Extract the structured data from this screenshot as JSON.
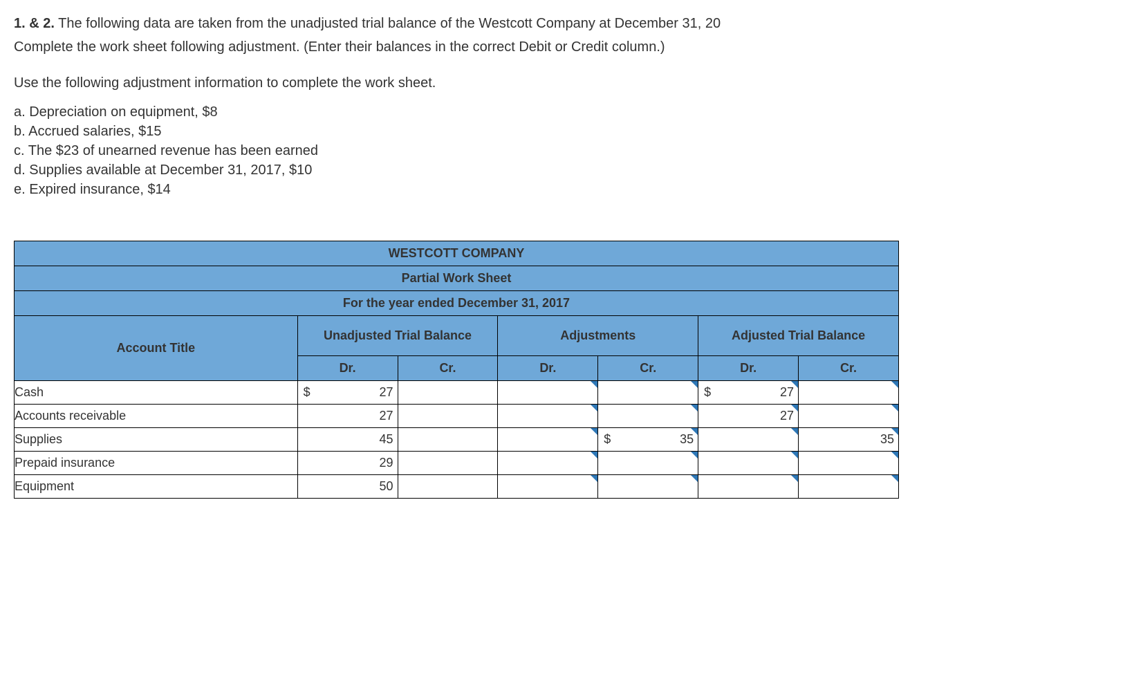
{
  "intro": {
    "line1_prefix": "1. & 2.",
    "line1_rest": " The following data are taken from the unadjusted trial balance of the Westcott Company at December 31, 20",
    "line2": "Complete the work sheet following adjustment. (Enter their balances in the correct Debit or Credit column.)",
    "line3": "Use the following adjustment information to complete the work sheet."
  },
  "adjustments_list": {
    "a": "a. Depreciation on equipment, $8",
    "b": "b. Accrued salaries, $15",
    "c": "c. The $23 of unearned revenue has been earned",
    "d": "d. Supplies available at December 31, 2017, $10",
    "e": "e. Expired insurance, $14"
  },
  "table": {
    "title1": "WESTCOTT COMPANY",
    "title2": "Partial Work Sheet",
    "title3": "For the year ended December 31, 2017",
    "group_headers": {
      "unadj": "Unadjusted Trial Balance",
      "adj": "Adjustments",
      "adjtb": "Adjusted Trial Balance"
    },
    "col_headers": {
      "acct": "Account Title",
      "dr": "Dr.",
      "cr": "Cr."
    },
    "header_bg": "#6fa8d8",
    "marker_color": "#2f78b7",
    "rows": [
      {
        "label": "Cash",
        "unadj_dr": {
          "sym": "$",
          "val": "27"
        },
        "unadj_cr": {
          "sym": "",
          "val": ""
        },
        "adj_dr": {
          "editable": true,
          "sym": "",
          "val": ""
        },
        "adj_cr": {
          "editable": true,
          "sym": "",
          "val": ""
        },
        "atb_dr": {
          "editable": true,
          "sym": "$",
          "val": "27"
        },
        "atb_cr": {
          "editable": true,
          "sym": "",
          "val": ""
        }
      },
      {
        "label": "Accounts receivable",
        "unadj_dr": {
          "sym": "",
          "val": "27"
        },
        "unadj_cr": {
          "sym": "",
          "val": ""
        },
        "adj_dr": {
          "editable": true,
          "sym": "",
          "val": ""
        },
        "adj_cr": {
          "editable": true,
          "sym": "",
          "val": ""
        },
        "atb_dr": {
          "editable": true,
          "sym": "",
          "val": "27"
        },
        "atb_cr": {
          "editable": true,
          "sym": "",
          "val": ""
        }
      },
      {
        "label": "Supplies",
        "unadj_dr": {
          "sym": "",
          "val": "45"
        },
        "unadj_cr": {
          "sym": "",
          "val": ""
        },
        "adj_dr": {
          "editable": true,
          "sym": "",
          "val": ""
        },
        "adj_cr": {
          "editable": true,
          "sym": "$",
          "val": "35"
        },
        "atb_dr": {
          "editable": true,
          "sym": "",
          "val": ""
        },
        "atb_cr": {
          "editable": true,
          "sym": "",
          "val": "35"
        }
      },
      {
        "label": "Prepaid insurance",
        "unadj_dr": {
          "sym": "",
          "val": "29"
        },
        "unadj_cr": {
          "sym": "",
          "val": ""
        },
        "adj_dr": {
          "editable": true,
          "sym": "",
          "val": ""
        },
        "adj_cr": {
          "editable": true,
          "sym": "",
          "val": ""
        },
        "atb_dr": {
          "editable": true,
          "sym": "",
          "val": ""
        },
        "atb_cr": {
          "editable": true,
          "sym": "",
          "val": ""
        }
      },
      {
        "label": "Equipment",
        "unadj_dr": {
          "sym": "",
          "val": "50"
        },
        "unadj_cr": {
          "sym": "",
          "val": ""
        },
        "adj_dr": {
          "editable": true,
          "sym": "",
          "val": ""
        },
        "adj_cr": {
          "editable": true,
          "sym": "",
          "val": ""
        },
        "atb_dr": {
          "editable": true,
          "sym": "",
          "val": ""
        },
        "atb_cr": {
          "editable": true,
          "sym": "",
          "val": ""
        }
      }
    ]
  }
}
